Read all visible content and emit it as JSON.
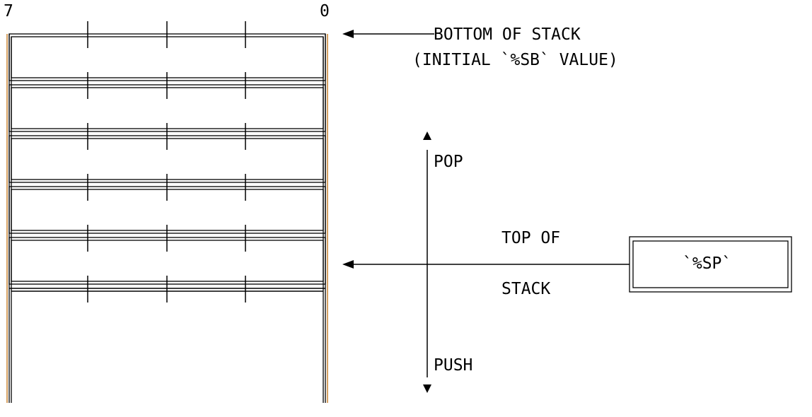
{
  "bit_labels": {
    "high": "7",
    "low": "0"
  },
  "bottom_of_stack": {
    "line1": "BOTTOM OF STACK",
    "line2": "(INITIAL `%SB` VALUE)"
  },
  "direction": {
    "pop": "POP",
    "push": "PUSH"
  },
  "top_of_stack": {
    "line1": "TOP OF",
    "line2": "STACK"
  },
  "stack_pointer": {
    "label": "`%SP`"
  },
  "stack": {
    "cell_count": 5,
    "byte_dividers": 3
  },
  "colors": {
    "ink": "#000000",
    "frame_accent": "#c9822e",
    "background": "#ffffff"
  }
}
